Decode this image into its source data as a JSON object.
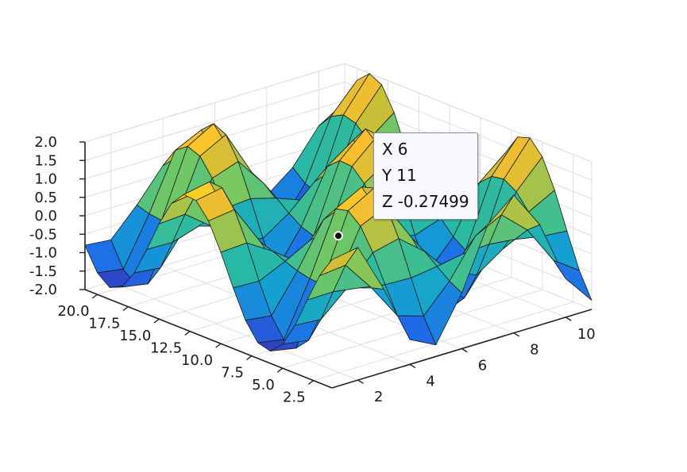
{
  "chart_data": {
    "type": "surface",
    "title": "",
    "xlabel": "",
    "ylabel": "",
    "zlabel": "",
    "x_range": [
      1,
      11
    ],
    "y_range": [
      1,
      21
    ],
    "z_range": [
      -2.0,
      2.0
    ],
    "grid": true,
    "colormap": "parula",
    "x_ticks": [
      "2",
      "4",
      "6",
      "8",
      "10"
    ],
    "y_ticks": [
      "2.5",
      "5.0",
      "7.5",
      "10.0",
      "12.5",
      "15.0",
      "17.5",
      "20.0"
    ],
    "z_ticks": [
      "-2.0",
      "-1.5",
      "-1.0",
      "-0.5",
      "0.0",
      "0.5",
      "1.0",
      "1.5",
      "2.0"
    ],
    "grid_x": [
      1,
      2,
      3,
      4,
      5,
      6,
      7,
      8,
      9,
      10,
      11
    ],
    "grid_y": [
      1,
      2,
      3,
      4,
      5,
      6,
      7,
      8,
      9,
      10,
      11,
      12,
      13,
      14,
      15,
      16,
      17,
      18,
      19,
      20,
      21
    ],
    "approx_function": "z ≈ 2 · sin(x) · cos(y/2) (sampled on integer grid, estimated from the figure)",
    "datatip": {
      "x": 6,
      "y": 11,
      "z": -0.27499
    }
  },
  "datatip": {
    "x_key": "X",
    "x_value": "6",
    "y_key": "Y",
    "y_value": "11",
    "z_key": "Z",
    "z_value": "-0.27499"
  },
  "colors": {
    "background": "#ffffff",
    "grid": "#dedede",
    "axis": "#222222",
    "edge": "#1a1a1a",
    "datatip_bg": "#f8f8ff",
    "datatip_border": "#8e8e8e"
  }
}
